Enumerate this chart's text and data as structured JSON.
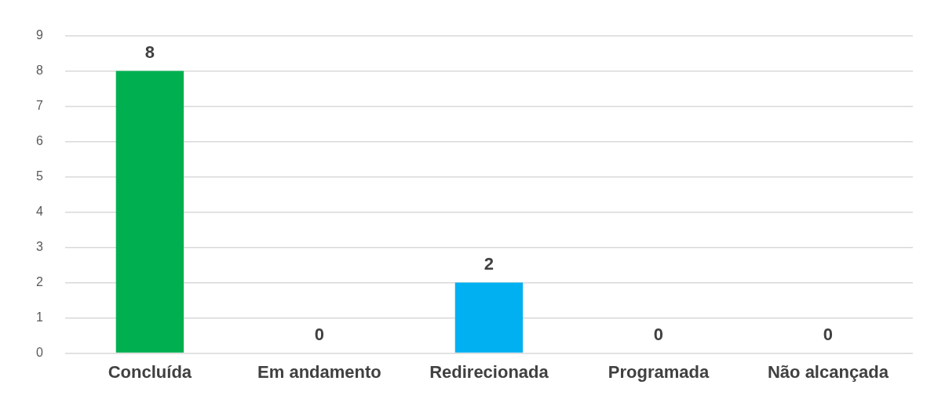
{
  "chart_data": {
    "type": "bar",
    "categories": [
      "Concluída",
      "Em andamento",
      "Redirecionada",
      "Programada",
      "Não alcançada"
    ],
    "values": [
      8,
      0,
      2,
      0,
      0
    ],
    "colors": [
      "#00b050",
      "#ffc000",
      "#00b0f0",
      "#7030a0",
      "#ff0000"
    ],
    "ylim": [
      0,
      9
    ],
    "yticks": [
      0,
      1,
      2,
      3,
      4,
      5,
      6,
      7,
      8,
      9
    ],
    "grid": "y",
    "data_labels": true,
    "legend": false
  }
}
